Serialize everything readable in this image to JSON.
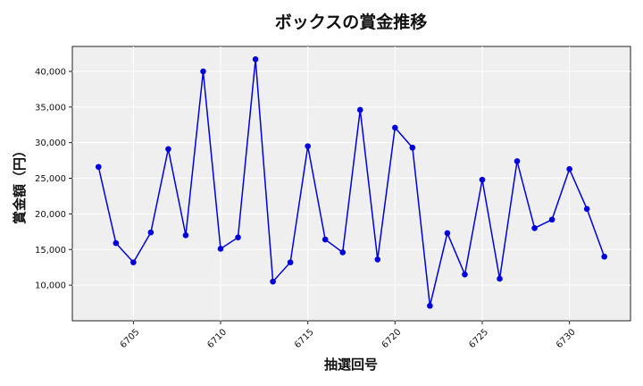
{
  "chart_data": {
    "type": "line",
    "title": "ボックスの賞金推移",
    "xlabel": "抽選回号",
    "ylabel": "賞金額（円）",
    "x": [
      6703,
      6704,
      6705,
      6706,
      6707,
      6708,
      6709,
      6710,
      6711,
      6712,
      6713,
      6714,
      6715,
      6716,
      6717,
      6718,
      6719,
      6720,
      6721,
      6722,
      6723,
      6724,
      6725,
      6726,
      6727,
      6728,
      6729,
      6730,
      6731,
      6732
    ],
    "series": [
      {
        "values": [
          26600,
          15900,
          13200,
          17400,
          29100,
          17000,
          40000,
          15100,
          16700,
          41700,
          10500,
          13200,
          29500,
          16400,
          14600,
          34600,
          13600,
          32100,
          29300,
          7100,
          17300,
          11500,
          24800,
          10900,
          27400,
          18000,
          19200,
          26300,
          20700,
          14000
        ]
      }
    ],
    "xticks": [
      6705,
      6710,
      6715,
      6720,
      6725,
      6730
    ],
    "yticks": [
      10000,
      15000,
      20000,
      25000,
      30000,
      35000,
      40000
    ],
    "xlim": [
      6701.5,
      6733.5
    ],
    "ylim": [
      5000,
      43500
    ],
    "grid": true,
    "color": "#0000dd",
    "background": "#efefef"
  }
}
